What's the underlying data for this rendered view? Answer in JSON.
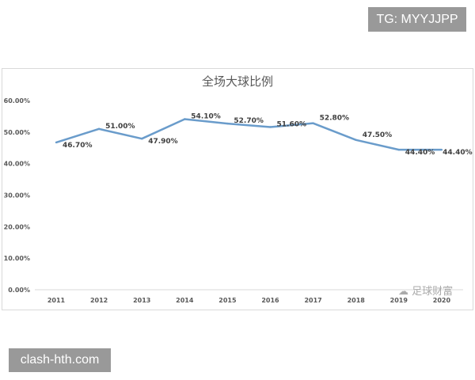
{
  "watermarks": {
    "top_right": "TG: MYYJJPP",
    "bottom_left": "clash-hth.com",
    "chart_logo": "足球财富"
  },
  "chart_data": {
    "type": "line",
    "title": "全场大球比例",
    "categories": [
      "2011",
      "2012",
      "2013",
      "2014",
      "2015",
      "2016",
      "2017",
      "2018",
      "2019",
      "2020"
    ],
    "series": [
      {
        "values": [
          46.7,
          51.0,
          47.9,
          54.1,
          52.7,
          51.6,
          52.8,
          47.5,
          44.4,
          44.4
        ],
        "color": "#6a9ccb"
      }
    ],
    "data_labels": [
      "46.70%",
      "51.00%",
      "47.90%",
      "54.10%",
      "52.70%",
      "51.60%",
      "52.80%",
      "47.50%",
      "44.40%",
      "44.40%"
    ],
    "yticks": [
      "0.00%",
      "10.00%",
      "20.00%",
      "30.00%",
      "40.00%",
      "50.00%",
      "60.00%"
    ],
    "ylim": [
      0,
      60
    ],
    "grid": false,
    "legend": "none"
  }
}
